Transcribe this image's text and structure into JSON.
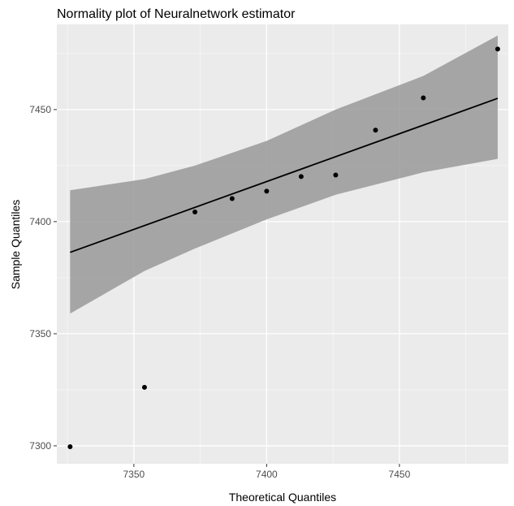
{
  "chart_data": {
    "type": "scatter",
    "title": "Normality plot of Neuralnetwork estimator",
    "xlabel": "Theoretical Quantiles",
    "ylabel": "Sample Quantiles",
    "xlim": [
      7321,
      7491
    ],
    "ylim": [
      7292,
      7488
    ],
    "x_ticks": [
      7350,
      7400,
      7450
    ],
    "y_ticks": [
      7300,
      7350,
      7400,
      7450
    ],
    "x_tick_labels": [
      "7350",
      "7400",
      "7450"
    ],
    "y_tick_labels": [
      "7300",
      "7350",
      "7400",
      "7450"
    ],
    "grid": true,
    "points": {
      "x": [
        7326,
        7354,
        7373,
        7387,
        7400,
        7413,
        7426,
        7441,
        7459,
        7487
      ],
      "y": [
        7299.6,
        7326.1,
        7404.3,
        7410.3,
        7413.6,
        7420.1,
        7420.8,
        7440.8,
        7455.2,
        7477.0
      ]
    },
    "fit_line": {
      "x": [
        7326,
        7487
      ],
      "y": [
        7386.3,
        7455.0
      ]
    },
    "confidence_band": {
      "x": [
        7326,
        7354,
        7373,
        7400,
        7426,
        7459,
        7487
      ],
      "lower": [
        7359.0,
        7378.0,
        7388.0,
        7401.0,
        7412.0,
        7422.0,
        7428.0
      ],
      "upper": [
        7414.0,
        7419.0,
        7425.0,
        7436.0,
        7450.0,
        7465.0,
        7483.0
      ]
    },
    "colors": {
      "panel": "#ebebeb",
      "grid_major": "#ffffff",
      "band": "#999999",
      "line": "#000000",
      "point": "#000000"
    }
  }
}
